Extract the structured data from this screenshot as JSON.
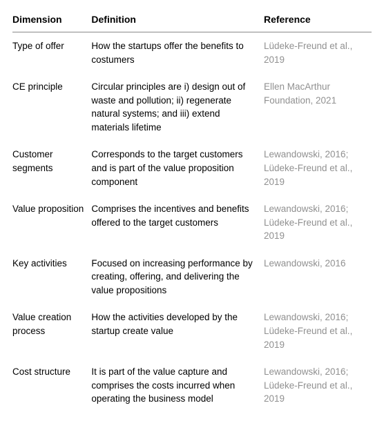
{
  "table": {
    "headers": {
      "dimension": "Dimension",
      "definition": "Definition",
      "reference": "Reference"
    },
    "rows": [
      {
        "dimension": "Type of offer",
        "definition": "How the startups offer the benefits to costumers",
        "reference": "Lüdeke-Freund et al., 2019"
      },
      {
        "dimension": "CE principle",
        "definition": "Circular principles are i) design out of waste and pollution; ii) regenerate natural systems; and iii) extend materials lifetime",
        "reference": "Ellen MacArthur Foundation, 2021"
      },
      {
        "dimension": "Customer segments",
        "definition": "Corresponds to the target customers and is part of the value proposition component",
        "reference": "Lewandowski, 2016; Lüdeke-Freund et al., 2019"
      },
      {
        "dimension": "Value proposition",
        "definition": "Comprises the incentives and benefits offered to the target customers",
        "reference": "Lewandowski, 2016; Lüdeke-Freund et al., 2019"
      },
      {
        "dimension": "Key activities",
        "definition": "Focused on increasing performance by creating, offering, and delivering the value propositions",
        "reference": "Lewandowski, 2016"
      },
      {
        "dimension": "Value creation process",
        "definition": "How the activities developed by the startup create value",
        "reference": "Lewandowski, 2016; Lüdeke-Freund et al., 2019"
      },
      {
        "dimension": "Cost structure",
        "definition": "It is part of the value capture and comprises the costs incurred when operating the business model",
        "reference": "Lewandowski, 2016; Lüdeke-Freund et al., 2019"
      }
    ]
  },
  "style": {
    "font_family": "Arial, Helvetica, sans-serif",
    "header_fontsize": 14,
    "body_fontsize": 13.5,
    "text_color": "#000000",
    "reference_color": "#909090",
    "background_color": "#ffffff",
    "border_color": "#888888",
    "col_widths": [
      "22%",
      "48%",
      "30%"
    ]
  }
}
